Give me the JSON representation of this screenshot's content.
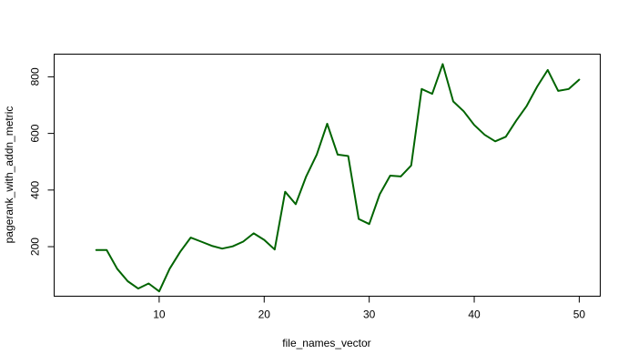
{
  "chart_data": {
    "type": "line",
    "title": "",
    "xlabel": "file_names_vector",
    "ylabel": "pagerank_with_addn_metric",
    "xlim": [
      0,
      52
    ],
    "ylim": [
      25,
      880
    ],
    "x_ticks": [
      10,
      20,
      30,
      40,
      50
    ],
    "y_ticks": [
      200,
      400,
      600,
      800
    ],
    "grid": false,
    "line_color": "#006400",
    "series": [
      {
        "x": [
          4,
          5,
          6,
          7,
          8,
          9,
          10,
          11,
          12,
          13,
          14,
          15,
          16,
          17,
          18,
          19,
          20,
          21,
          22,
          23,
          24,
          25,
          26,
          27,
          28,
          29,
          30,
          31,
          32,
          33,
          34,
          35,
          36,
          37,
          38,
          39,
          40,
          41,
          42,
          43,
          44,
          45,
          46,
          47,
          48,
          49,
          50
        ],
        "values": [
          188,
          188,
          122,
          78,
          52,
          70,
          42,
          122,
          182,
          232,
          218,
          203,
          193,
          201,
          218,
          247,
          224,
          190,
          394,
          350,
          448,
          525,
          634,
          525,
          520,
          298,
          280,
          385,
          451,
          448,
          487,
          757,
          740,
          845,
          713,
          678,
          630,
          595,
          572,
          588,
          645,
          697,
          766,
          824,
          750,
          757,
          790
        ]
      }
    ]
  }
}
